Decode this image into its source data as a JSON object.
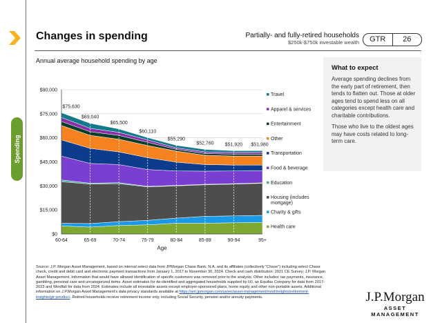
{
  "sidebar": {
    "section": "Spending"
  },
  "header": {
    "title": "Changes in spending",
    "audience": "Partially- and fully-retired households",
    "wealth": "$250k-$750k investable wealth",
    "badge_label": "GTR",
    "page_number": "26"
  },
  "subtitle": "Annual average household spending by age",
  "insight": {
    "title": "What to expect",
    "p1": "Average spending declines from the early part of retirement, then tends to flatten out. Those at older ages tend to spend less on all categories except health care and charitable contributions.",
    "p2": "Those who live to the oldest ages may have costs related to long-term care."
  },
  "footer": {
    "source": "Source: J.P. Morgan Asset Management, based on internal select data from JPMorgan Chase Bank, N.A. and its affiliates (collectively \"Chase\") including select Chase check, credit and debit card and electronic payment transactions from January 1, 2017 to November 30, 2024. Check and cash distribution: 2021 CE Survey; J.P. Morgan Asset Management. Information that would have allowed identification of specific customers was removed prior to the analysis. Other includes: tax payments, insurance, gambling, personal care and uncategorized items. Asset estimates for de-identified and aggregated households supplied by IXI, an Equifax Company for data from 2017-2023 and Windfall for data from 2024. Estimates include all investable assets except employer-sponsored plans, home equity and other non-portable assets. Additional information on J.P.Morgan Asset Management's data privacy standards available at",
    "link": "https://am.jpmorgan.com/us/en/asset-management/mod/insights/retirement-insights/gtr-privdisc/",
    "source_end": ". Retired households receive retirement income only, including Social Security, pension and/or annuity payments.",
    "logo_main": "J.P.Morgan",
    "logo_sub": "ASSET MANAGEMENT"
  },
  "chart_data": {
    "type": "area",
    "title": "Annual average household spending by age",
    "xlabel": "Age",
    "ylabel": "",
    "ylim": [
      0,
      90000
    ],
    "yticks": [
      0,
      15000,
      30000,
      45000,
      60000,
      75000,
      90000
    ],
    "ytick_labels": [
      "$0",
      "$15,000",
      "$30,000",
      "$45,000",
      "$60,000",
      "$75,000",
      "$90,000"
    ],
    "categories": [
      "60-64",
      "65-69",
      "70-74",
      "75-79",
      "80-84",
      "85-89",
      "90-94",
      "95+"
    ],
    "totals": [
      75630,
      69040,
      65500,
      60110,
      55290,
      52760,
      51920,
      51980
    ],
    "total_labels": [
      "$75,630",
      "$69,040",
      "$65,500",
      "$60,110",
      "$55,290",
      "$52,760",
      "$51,920",
      "$51,980"
    ],
    "legend_placement": "right",
    "series": [
      {
        "name": "Health care",
        "color": "#7fa832",
        "values": [
          5000,
          4300,
          5300,
          5700,
          6700,
          6700,
          7000,
          7200
        ]
      },
      {
        "name": "Charity & gifts",
        "color": "#1a9ae6",
        "values": [
          1700,
          2200,
          2400,
          2800,
          3200,
          4300,
          4300,
          4400
        ]
      },
      {
        "name": "Housing (includes mortgage)",
        "color": "#4d4d4d",
        "values": [
          25900,
          24600,
          23700,
          20900,
          20100,
          19700,
          19800,
          20000
        ]
      },
      {
        "name": "Education",
        "color": "#4aab9e",
        "values": [
          1100,
          600,
          600,
          300,
          300,
          300,
          300,
          300
        ]
      },
      {
        "name": "Food & beverage",
        "color": "#7a3fd1",
        "values": [
          14900,
          12300,
          11300,
          10500,
          9000,
          8200,
          7900,
          7600
        ]
      },
      {
        "name": "Transportation",
        "color": "#0d3c8c",
        "values": [
          10100,
          9400,
          7900,
          7400,
          5500,
          4100,
          3700,
          3500
        ]
      },
      {
        "name": "Other",
        "color": "#f5821f",
        "values": [
          9000,
          8100,
          7900,
          7600,
          6900,
          5800,
          5600,
          5600
        ]
      },
      {
        "name": "Entertainment",
        "color": "#0a3d2a",
        "values": [
          2500,
          2300,
          2400,
          2000,
          1100,
          1100,
          1200,
          1200
        ]
      },
      {
        "name": "Apparel & services",
        "color": "#8b2fa8",
        "values": [
          2500,
          2100,
          1900,
          1500,
          900,
          1000,
          1000,
          1100
        ]
      },
      {
        "name": "Travel",
        "color": "#127a8a",
        "values": [
          2930,
          3140,
          2100,
          1410,
          1590,
          1560,
          1120,
          1080
        ]
      }
    ]
  }
}
